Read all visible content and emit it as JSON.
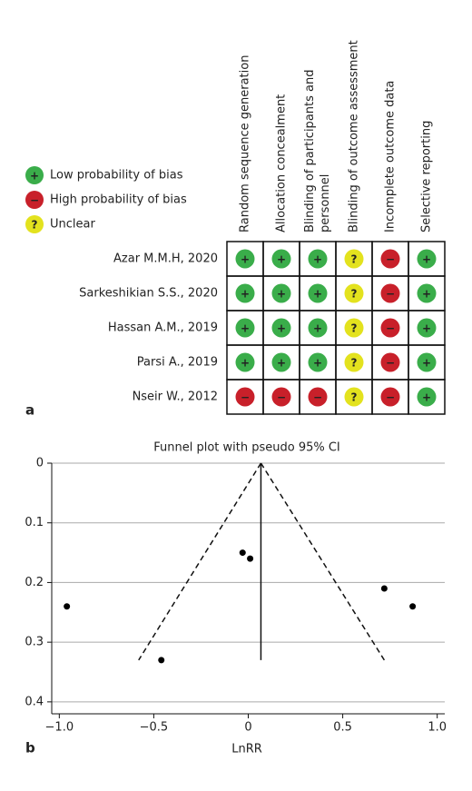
{
  "panel_a": {
    "label": "a",
    "legend": [
      {
        "symbol": "+",
        "text": "Low probability of bias",
        "color": "#3aad4a"
      },
      {
        "symbol": "−",
        "text": "High probability of bias",
        "color": "#c8202a"
      },
      {
        "symbol": "?",
        "text": "Unclear",
        "color": "#e3e21e"
      }
    ],
    "columns": [
      [
        "Random sequence generation"
      ],
      [
        "Allocation concealment"
      ],
      [
        "Blinding of participants and",
        "personnel"
      ],
      [
        "Blinding of outcome assessment"
      ],
      [
        "Incomplete outcome data"
      ],
      [
        "Selective reporting"
      ]
    ],
    "rows": [
      {
        "study": "Azar M.M.H, 2020",
        "ratings": [
          "+",
          "+",
          "+",
          "?",
          "−",
          "+"
        ]
      },
      {
        "study": "Sarkeshikian S.S., 2020",
        "ratings": [
          "+",
          "+",
          "+",
          "?",
          "−",
          "+"
        ]
      },
      {
        "study": "Hassan A.M., 2019",
        "ratings": [
          "+",
          "+",
          "+",
          "?",
          "−",
          "+"
        ]
      },
      {
        "study": "Parsi A., 2019",
        "ratings": [
          "+",
          "+",
          "+",
          "?",
          "−",
          "+"
        ]
      },
      {
        "study": "Nseir W., 2012",
        "ratings": [
          "−",
          "−",
          "−",
          "?",
          "−",
          "+"
        ]
      }
    ]
  },
  "chart_data": {
    "type": "scatter",
    "panel_label": "b",
    "title": "Funnel plot with pseudo 95% CI",
    "x_label": "LnRR",
    "x": [
      -0.96,
      -0.46,
      -0.03,
      0.01,
      0.72,
      0.87
    ],
    "y": [
      0.24,
      0.33,
      0.15,
      0.16,
      0.21,
      0.24
    ],
    "color": "#000000",
    "xlim": [
      -1.04,
      1.04
    ],
    "ylim": [
      0,
      0.42
    ],
    "y_inverted": true,
    "xticks": [
      {
        "value": -1,
        "label": "−1.0"
      },
      {
        "value": -0.5,
        "label": "−0.5"
      },
      0,
      0.5,
      {
        "value": 1,
        "label": "1.0"
      }
    ],
    "yticks": [
      0,
      0.1,
      0.2,
      0.3,
      0.4
    ],
    "grid": true,
    "pooled_estimate": 0.067,
    "funnel_base": {
      "y": 0.33,
      "x_low": -0.58,
      "x_high": 0.72
    }
  }
}
